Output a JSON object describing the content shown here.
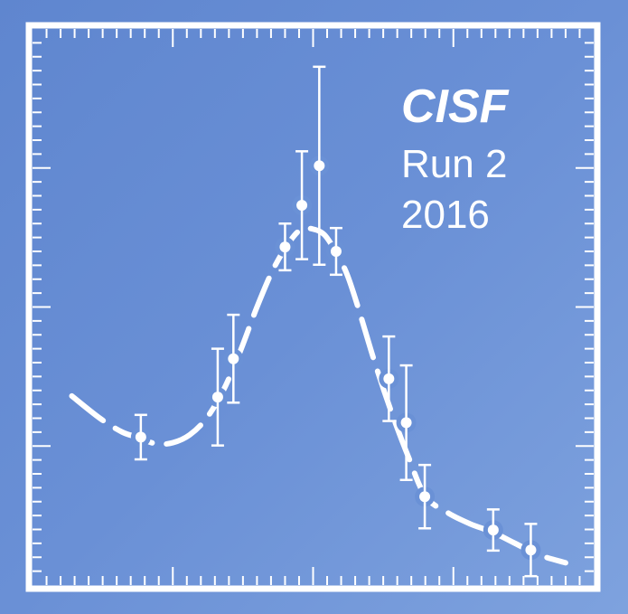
{
  "chart_data": {
    "type": "scatter",
    "annotations": {
      "experiment": "CISF",
      "run": "Run 2",
      "year": "2016"
    },
    "xlim": [
      0,
      100
    ],
    "ylim": [
      0,
      100
    ],
    "grid": false,
    "series": [
      {
        "kind": "points_with_errors",
        "points": [
          {
            "x": 19.3,
            "y": 26.6,
            "err": 4.0
          },
          {
            "x": 33.0,
            "y": 33.8,
            "err": 8.7
          },
          {
            "x": 35.8,
            "y": 40.7,
            "err": 7.9
          },
          {
            "x": 45.0,
            "y": 60.8,
            "err": 4.2
          },
          {
            "x": 48.0,
            "y": 68.3,
            "err": 9.7
          },
          {
            "x": 51.1,
            "y": 75.4,
            "err": 17.8
          },
          {
            "x": 54.1,
            "y": 60.0,
            "err": 4.2
          },
          {
            "x": 63.5,
            "y": 37.1,
            "err": 7.6
          },
          {
            "x": 66.6,
            "y": 29.2,
            "err": 10.3
          },
          {
            "x": 69.9,
            "y": 15.9,
            "err": 5.7
          },
          {
            "x": 82.1,
            "y": 9.9,
            "err": 3.7
          },
          {
            "x": 88.8,
            "y": 6.3,
            "err": 4.7
          }
        ]
      },
      {
        "kind": "fit_curve",
        "x": [
          7,
          12,
          16,
          19,
          22,
          25,
          28,
          31,
          34,
          37,
          40,
          43,
          46,
          48,
          50,
          52,
          54,
          56,
          58,
          61,
          64,
          67,
          70,
          74,
          78,
          82,
          86,
          90,
          95
        ],
        "y": [
          34,
          30,
          27.5,
          26.5,
          25.4,
          25.6,
          27,
          30,
          35,
          42,
          50,
          57,
          62,
          64,
          64,
          63,
          60,
          56,
          50,
          40,
          31,
          23,
          16,
          13,
          11,
          9.5,
          7.5,
          5.5,
          4
        ]
      }
    ]
  }
}
